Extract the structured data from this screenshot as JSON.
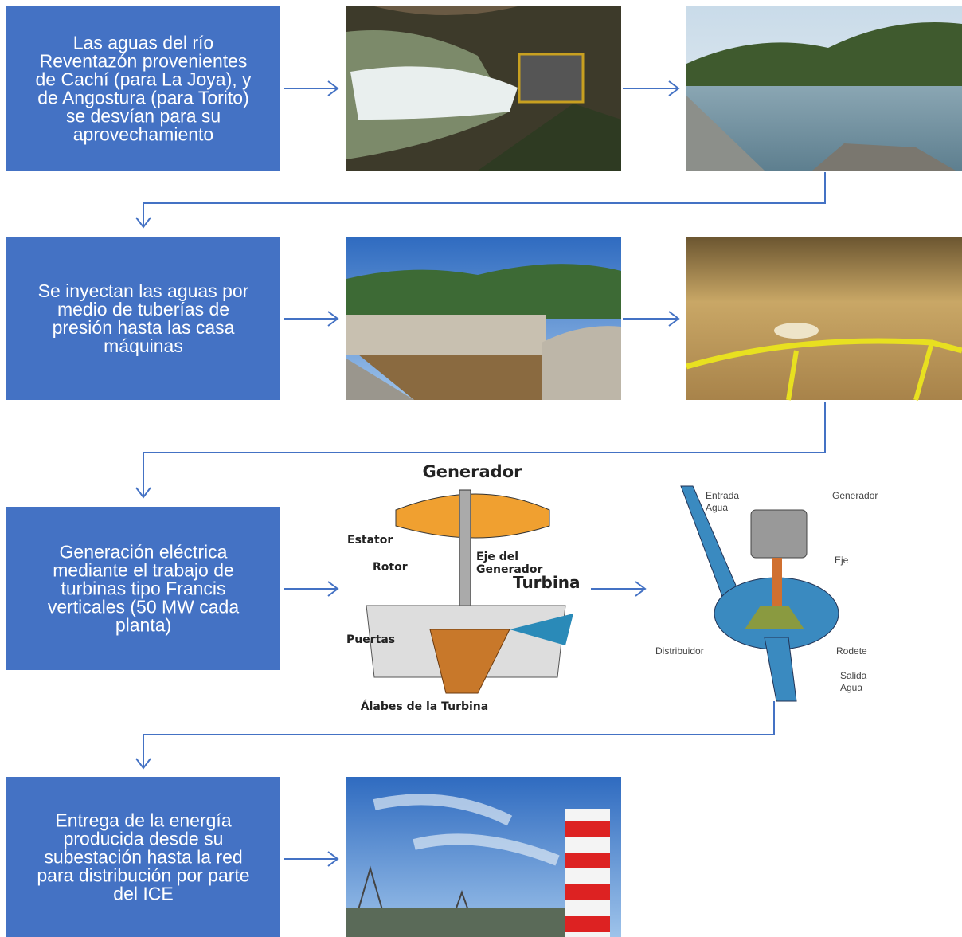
{
  "steps": [
    {
      "lines": [
        "Las aguas del río",
        "Reventazón provenientes",
        "de Cachí (para La Joya), y",
        "de Angostura (para Torito)",
        "se desvían para su",
        "aprovechamiento"
      ]
    },
    {
      "lines": [
        "Se inyectan las aguas por",
        "medio de tuberías de",
        "presión hasta las casa",
        "máquinas"
      ]
    },
    {
      "lines": [
        "Generación eléctrica",
        "mediante el trabajo de",
        "turbinas tipo Francis",
        "verticales (50 MW cada",
        "planta)"
      ]
    },
    {
      "lines": [
        "Entrega de la energía",
        "producida desde su",
        "subestación hasta la red",
        "para distribución por parte",
        "del ICE"
      ]
    }
  ],
  "turbine_diagram": {
    "generador": "Generador",
    "estator": "Estator",
    "rotor": "Rotor",
    "eje": [
      "Eje del",
      "Generador"
    ],
    "turbina": "Turbina",
    "puertas": "Puertas",
    "alabes": "Álabes de la Turbina"
  },
  "francis_diagram": {
    "entrada": [
      "Entrada",
      "Agua"
    ],
    "generador": "Generador",
    "eje": "Eje",
    "distribuidor": "Distribuidor",
    "rodete": "Rodete",
    "salida": [
      "Salida",
      "Agua"
    ]
  }
}
